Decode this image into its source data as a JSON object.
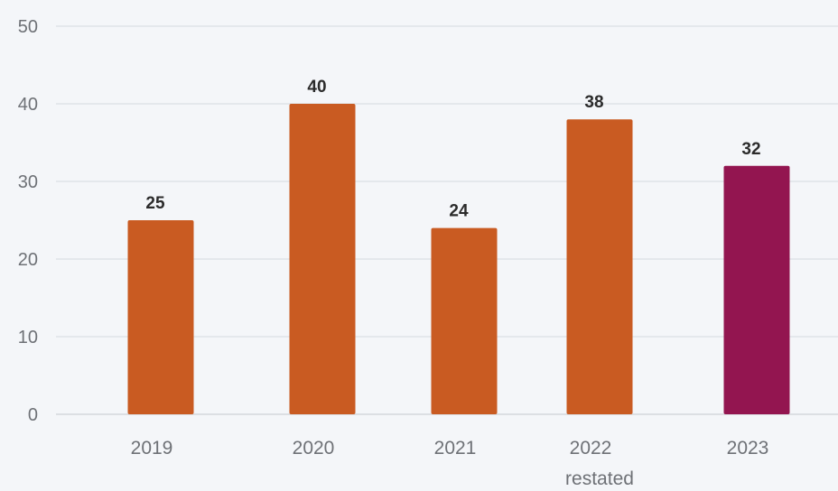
{
  "chart_data": {
    "type": "bar",
    "categories": [
      "2019",
      "2020",
      "2021",
      "2022",
      "2023"
    ],
    "category_sublabels": [
      "",
      "",
      "",
      "restated",
      ""
    ],
    "values": [
      25,
      40,
      24,
      38,
      32
    ],
    "data_labels": [
      "25",
      "40",
      "24",
      "38",
      "32"
    ],
    "bar_colors": [
      "#c95b22",
      "#c95b22",
      "#c95b22",
      "#c95b22",
      "#931550"
    ],
    "title": "",
    "xlabel": "",
    "ylabel": "",
    "ylim": [
      0,
      50
    ],
    "yticks": [
      "0",
      "10",
      "20",
      "30",
      "40",
      "50"
    ],
    "grid": true,
    "legend": "none"
  }
}
